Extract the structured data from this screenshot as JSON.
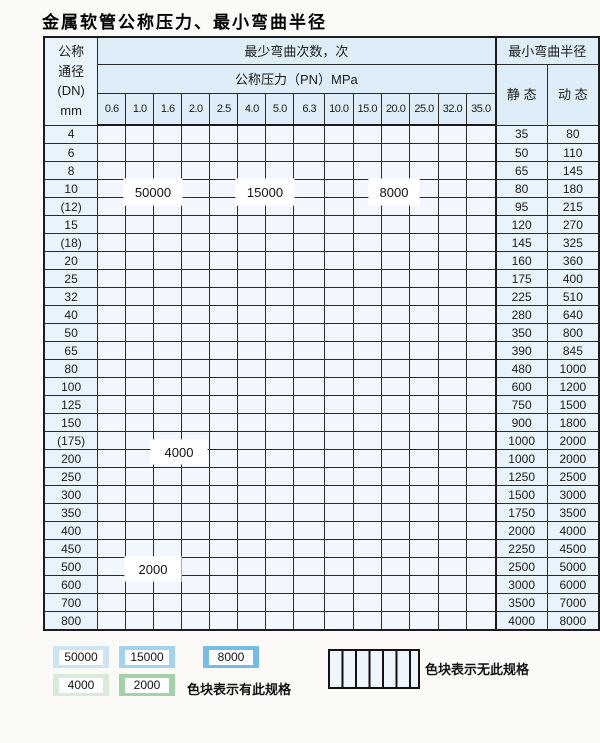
{
  "title": "金属软管公称压力、最小弯曲半径",
  "colors": {
    "bend_50000": "#cbe5f6",
    "bend_15000": "#a4d3ef",
    "bend_8000": "#74bde9",
    "bend_4000": "#d7ebd8",
    "bend_2000": "#a3d2a8",
    "header_bg": "#ddeef9",
    "dn_bg": "#e9f3fb",
    "hatch_bg": "#eef5fb"
  },
  "table": {
    "header": {
      "dn_lines": [
        "公称",
        "通径",
        "(DN)",
        "mm"
      ],
      "bend_times_label": "最少弯曲次数，次",
      "pressure_label": "公称压力（PN）MPa",
      "pressures": [
        "0.6",
        "1.0",
        "1.6",
        "2.0",
        "2.5",
        "4.0",
        "5.0",
        "6.3",
        "10.0",
        "15.0",
        "20.0",
        "25.0",
        "32.0",
        "35.0"
      ],
      "radius_label": "最小弯曲半径",
      "static_label": "静 态",
      "dynamic_label": "动 态"
    },
    "cell_legend": {
      "L": "50000次",
      "M": "15000次",
      "D": "8000次",
      "G4": "4000次",
      "G2": "2000次",
      "X": "无此规格"
    },
    "rows": [
      {
        "dn": "4",
        "static": "35",
        "dynamic": "80",
        "cells": [
          "L",
          "L",
          "L",
          "L",
          "L",
          "M",
          "M",
          "M",
          "D",
          "D",
          "D",
          "D",
          "D",
          "D"
        ]
      },
      {
        "dn": "6",
        "static": "50",
        "dynamic": "110",
        "cells": [
          "L",
          "L",
          "L",
          "L",
          "L",
          "M",
          "M",
          "M",
          "D",
          "D",
          "D",
          "D",
          "X",
          "X"
        ]
      },
      {
        "dn": "8",
        "static": "65",
        "dynamic": "145",
        "cells": [
          "L",
          "L",
          "L",
          "L",
          "L",
          "M",
          "M",
          "M",
          "D",
          "D",
          "D",
          "D",
          "X",
          "X"
        ]
      },
      {
        "dn": "10",
        "static": "80",
        "dynamic": "180",
        "cells": [
          "L",
          "L",
          "L",
          "L",
          "L",
          "M",
          "M",
          "M",
          "D",
          "D",
          "D",
          "D",
          "X",
          "X"
        ]
      },
      {
        "dn": "(12)",
        "static": "95",
        "dynamic": "215",
        "cells": [
          "L",
          "L",
          "L",
          "L",
          "L",
          "M",
          "M",
          "M",
          "D",
          "D",
          "D",
          "D",
          "X",
          "X"
        ]
      },
      {
        "dn": "15",
        "static": "120",
        "dynamic": "270",
        "cells": [
          "L",
          "L",
          "L",
          "L",
          "L",
          "M",
          "M",
          "M",
          "D",
          "D",
          "D",
          "D",
          "X",
          "X"
        ]
      },
      {
        "dn": "(18)",
        "static": "145",
        "dynamic": "325",
        "cells": [
          "L",
          "L",
          "L",
          "L",
          "L",
          "M",
          "M",
          "M",
          "D",
          "D",
          "D",
          "X",
          "X",
          "X"
        ]
      },
      {
        "dn": "20",
        "static": "160",
        "dynamic": "360",
        "cells": [
          "L",
          "L",
          "L",
          "L",
          "L",
          "M",
          "M",
          "M",
          "D",
          "D",
          "D",
          "X",
          "X",
          "X"
        ]
      },
      {
        "dn": "25",
        "static": "175",
        "dynamic": "400",
        "cells": [
          "L",
          "L",
          "L",
          "L",
          "L",
          "M",
          "M",
          "M",
          "D",
          "D",
          "X",
          "X",
          "X",
          "X"
        ]
      },
      {
        "dn": "32",
        "static": "225",
        "dynamic": "510",
        "cells": [
          "L",
          "L",
          "L",
          "L",
          "L",
          "M",
          "M",
          "D",
          "D",
          "X",
          "X",
          "X",
          "X",
          "X"
        ]
      },
      {
        "dn": "40",
        "static": "280",
        "dynamic": "640",
        "cells": [
          "L",
          "L",
          "L",
          "L",
          "L",
          "M",
          "M",
          "D",
          "D",
          "X",
          "X",
          "X",
          "X",
          "X"
        ]
      },
      {
        "dn": "50",
        "static": "350",
        "dynamic": "800",
        "cells": [
          "L",
          "L",
          "M",
          "M",
          "M",
          "M",
          "D",
          "D",
          "X",
          "X",
          "X",
          "X",
          "X",
          "X"
        ]
      },
      {
        "dn": "65",
        "static": "390",
        "dynamic": "845",
        "cells": [
          "L",
          "L",
          "M",
          "M",
          "M",
          "M",
          "D",
          "D",
          "X",
          "X",
          "X",
          "X",
          "X",
          "X"
        ]
      },
      {
        "dn": "80",
        "static": "480",
        "dynamic": "1000",
        "cells": [
          "L",
          "L",
          "M",
          "M",
          "M",
          "M",
          "D",
          "X",
          "X",
          "X",
          "X",
          "X",
          "X",
          "X"
        ]
      },
      {
        "dn": "100",
        "static": "600",
        "dynamic": "1200",
        "cells": [
          "G4",
          "G4",
          "G4",
          "G4",
          "G4",
          "G4",
          "X",
          "X",
          "X",
          "X",
          "X",
          "X",
          "X",
          "X"
        ]
      },
      {
        "dn": "125",
        "static": "750",
        "dynamic": "1500",
        "cells": [
          "G4",
          "G4",
          "G4",
          "G4",
          "G4",
          "G4",
          "X",
          "X",
          "X",
          "X",
          "X",
          "X",
          "X",
          "X"
        ]
      },
      {
        "dn": "150",
        "static": "900",
        "dynamic": "1800",
        "cells": [
          "G4",
          "G4",
          "G4",
          "G4",
          "G4",
          "G4",
          "X",
          "X",
          "X",
          "X",
          "X",
          "X",
          "X",
          "X"
        ]
      },
      {
        "dn": "(175)",
        "static": "1000",
        "dynamic": "2000",
        "cells": [
          "G4",
          "G4",
          "G4",
          "G4",
          "G4",
          "G4",
          "X",
          "X",
          "X",
          "X",
          "X",
          "X",
          "X",
          "X"
        ]
      },
      {
        "dn": "200",
        "static": "1000",
        "dynamic": "2000",
        "cells": [
          "G4",
          "G4",
          "G4",
          "G4",
          "G4",
          "G4",
          "X",
          "X",
          "X",
          "X",
          "X",
          "X",
          "X",
          "X"
        ]
      },
      {
        "dn": "250",
        "static": "1250",
        "dynamic": "2500",
        "cells": [
          "G4",
          "G4",
          "G4",
          "G4",
          "G4",
          "X",
          "X",
          "X",
          "X",
          "X",
          "X",
          "X",
          "X",
          "X"
        ]
      },
      {
        "dn": "300",
        "static": "1500",
        "dynamic": "3000",
        "cells": [
          "G4",
          "G4",
          "G4",
          "G4",
          "G4",
          "X",
          "X",
          "X",
          "X",
          "X",
          "X",
          "X",
          "X",
          "X"
        ]
      },
      {
        "dn": "350",
        "static": "1750",
        "dynamic": "3500",
        "cells": [
          "G2",
          "G2",
          "G2",
          "G2",
          "G2",
          "X",
          "X",
          "X",
          "X",
          "X",
          "X",
          "X",
          "X",
          "X"
        ]
      },
      {
        "dn": "400",
        "static": "2000",
        "dynamic": "4000",
        "cells": [
          "G2",
          "G2",
          "G2",
          "G2",
          "G2",
          "X",
          "X",
          "X",
          "X",
          "X",
          "X",
          "X",
          "X",
          "X"
        ]
      },
      {
        "dn": "450",
        "static": "2250",
        "dynamic": "4500",
        "cells": [
          "G2",
          "G2",
          "G2",
          "G2",
          "G2",
          "X",
          "X",
          "X",
          "X",
          "X",
          "X",
          "X",
          "X",
          "X"
        ]
      },
      {
        "dn": "500",
        "static": "2500",
        "dynamic": "5000",
        "cells": [
          "G2",
          "G2",
          "G2",
          "G2",
          "G2",
          "X",
          "X",
          "X",
          "X",
          "X",
          "X",
          "X",
          "X",
          "X"
        ]
      },
      {
        "dn": "600",
        "static": "3000",
        "dynamic": "6000",
        "cells": [
          "G2",
          "G2",
          "G2",
          "G2",
          "X",
          "X",
          "X",
          "X",
          "X",
          "X",
          "X",
          "X",
          "X",
          "X"
        ]
      },
      {
        "dn": "700",
        "static": "3500",
        "dynamic": "7000",
        "cells": [
          "G2",
          "G2",
          "G2",
          "X",
          "X",
          "X",
          "X",
          "X",
          "X",
          "X",
          "X",
          "X",
          "X",
          "X"
        ]
      },
      {
        "dn": "800",
        "static": "4000",
        "dynamic": "8000",
        "cells": [
          "G2",
          "G2",
          "G2",
          "X",
          "X",
          "X",
          "X",
          "X",
          "X",
          "X",
          "X",
          "X",
          "X",
          "X"
        ]
      }
    ]
  },
  "overlays": [
    {
      "text": "50000"
    },
    {
      "text": "15000"
    },
    {
      "text": "8000"
    },
    {
      "text": "4000"
    },
    {
      "text": "2000"
    }
  ],
  "legend": {
    "items": [
      {
        "value": "50000"
      },
      {
        "value": "15000"
      },
      {
        "value": "8000"
      },
      {
        "value": "4000"
      },
      {
        "value": "2000"
      }
    ],
    "has_spec_note": "色块表示有此规格",
    "no_spec_note": "色块表示无此规格"
  }
}
